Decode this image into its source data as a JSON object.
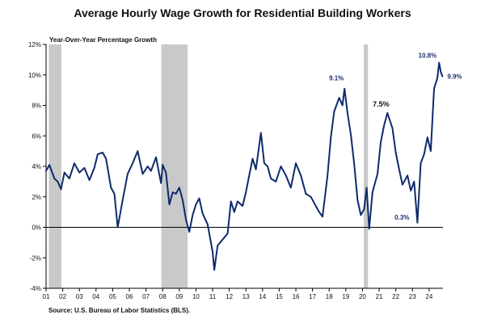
{
  "title": "Average Hourly Wage Growth for Residential Building Workers",
  "source": "Source: U.S. Bureau of Labor Statistics (BLS).",
  "colors": {
    "line": "#0e2a6b",
    "recession": "#c9c9c9",
    "axis": "#000000",
    "text": "#1f2f6f"
  },
  "chart_data": {
    "type": "line",
    "title": "Average Hourly Wage Growth for Residential Building Workers",
    "ylabel": "Year-Over-Year Percentage Growth",
    "xlabel": "",
    "ylim": [
      -4,
      12
    ],
    "xlim": [
      2001.0,
      2024.833
    ],
    "grid": false,
    "y_ticks": [
      -4,
      -2,
      0,
      2,
      4,
      6,
      8,
      10,
      12
    ],
    "y_tick_labels": [
      "-4%",
      "-2%",
      "0%",
      "2%",
      "4%",
      "6%",
      "8%",
      "10%",
      "12%"
    ],
    "x_ticks": [
      2001,
      2002,
      2003,
      2004,
      2005,
      2006,
      2007,
      2008,
      2009,
      2010,
      2011,
      2012,
      2013,
      2014,
      2015,
      2016,
      2017,
      2018,
      2019,
      2020,
      2021,
      2022,
      2023,
      2024
    ],
    "x_tick_labels": [
      "01",
      "02",
      "03",
      "04",
      "05",
      "06",
      "07",
      "08",
      "09",
      "10",
      "11",
      "12",
      "13",
      "14",
      "15",
      "16",
      "17",
      "18",
      "19",
      "20",
      "21",
      "22",
      "23",
      "24"
    ],
    "recessions": [
      [
        2001.17,
        2001.92
      ],
      [
        2007.92,
        2009.5
      ],
      [
        2020.08,
        2020.33
      ]
    ],
    "series": [
      {
        "x": [
          2001.0,
          2001.2,
          2001.5,
          2001.7,
          2001.9,
          2002.1,
          2002.4,
          2002.7,
          2003.0,
          2003.3,
          2003.6,
          2003.9,
          2004.1,
          2004.4,
          2004.6,
          2004.9,
          2005.1,
          2005.3,
          2005.6,
          2005.9,
          2006.2,
          2006.5,
          2006.8,
          2007.1,
          2007.3,
          2007.6,
          2007.9,
          2008.0,
          2008.2,
          2008.4,
          2008.6,
          2008.8,
          2009.0,
          2009.2,
          2009.4,
          2009.6,
          2009.8,
          2010.0,
          2010.2,
          2010.4,
          2010.7,
          2011.0,
          2011.1,
          2011.3,
          2011.6,
          2011.9,
          2012.1,
          2012.3,
          2012.5,
          2012.8,
          2013.0,
          2013.2,
          2013.4,
          2013.6,
          2013.9,
          2014.1,
          2014.3,
          2014.5,
          2014.8,
          2015.1,
          2015.4,
          2015.7,
          2016.0,
          2016.3,
          2016.6,
          2016.9,
          2017.2,
          2017.4,
          2017.6,
          2017.9,
          2018.1,
          2018.3,
          2018.6,
          2018.8,
          2018.92,
          2019.1,
          2019.3,
          2019.5,
          2019.7,
          2019.9,
          2020.1,
          2020.25,
          2020.4,
          2020.6,
          2020.9,
          2021.1,
          2021.3,
          2021.5,
          2021.8,
          2022.0,
          2022.2,
          2022.4,
          2022.7,
          2022.9,
          2023.1,
          2023.3,
          2023.5,
          2023.7,
          2023.9,
          2024.1,
          2024.3,
          2024.5,
          2024.6,
          2024.7,
          2024.8
        ],
        "y": [
          3.7,
          4.1,
          3.2,
          3.0,
          2.5,
          3.6,
          3.2,
          4.2,
          3.6,
          3.9,
          3.1,
          3.9,
          4.8,
          4.9,
          4.5,
          2.6,
          2.2,
          0.0,
          1.8,
          3.5,
          4.2,
          5.0,
          3.5,
          4.0,
          3.7,
          4.6,
          2.9,
          4.1,
          3.6,
          1.5,
          2.3,
          2.2,
          2.6,
          1.8,
          0.5,
          -0.3,
          0.8,
          1.5,
          1.9,
          0.9,
          0.2,
          -1.6,
          -2.8,
          -1.2,
          -0.8,
          -0.4,
          1.7,
          1.0,
          1.7,
          1.4,
          2.3,
          3.4,
          4.5,
          3.8,
          6.2,
          4.2,
          4.0,
          3.2,
          3.0,
          4.0,
          3.4,
          2.6,
          4.2,
          3.4,
          2.2,
          2.0,
          1.4,
          1.0,
          0.7,
          3.4,
          5.9,
          7.6,
          8.5,
          8.0,
          9.1,
          7.5,
          6.1,
          4.2,
          1.8,
          0.8,
          1.2,
          2.6,
          -0.1,
          2.3,
          3.5,
          5.6,
          6.7,
          7.5,
          6.5,
          4.9,
          3.8,
          2.8,
          3.4,
          2.4,
          3.0,
          0.3,
          4.2,
          4.8,
          5.9,
          5.0,
          9.1,
          9.8,
          10.8,
          10.2,
          9.9
        ]
      }
    ],
    "annotations": [
      {
        "text": "9.1%",
        "x": 2018.92,
        "y": 9.1,
        "color": "#1f2f6f"
      },
      {
        "text": "7.5%",
        "x": 2021.5,
        "y": 7.5,
        "color": "#111111"
      },
      {
        "text": "0.3%",
        "x": 2023.3,
        "y": 0.3,
        "color": "#1f2f6f"
      },
      {
        "text": "10.8%",
        "x": 2024.6,
        "y": 10.8,
        "color": "#1f2f6f"
      },
      {
        "text": "9.9%",
        "x": 2024.8,
        "y": 9.9,
        "color": "#1f2f6f"
      }
    ]
  }
}
